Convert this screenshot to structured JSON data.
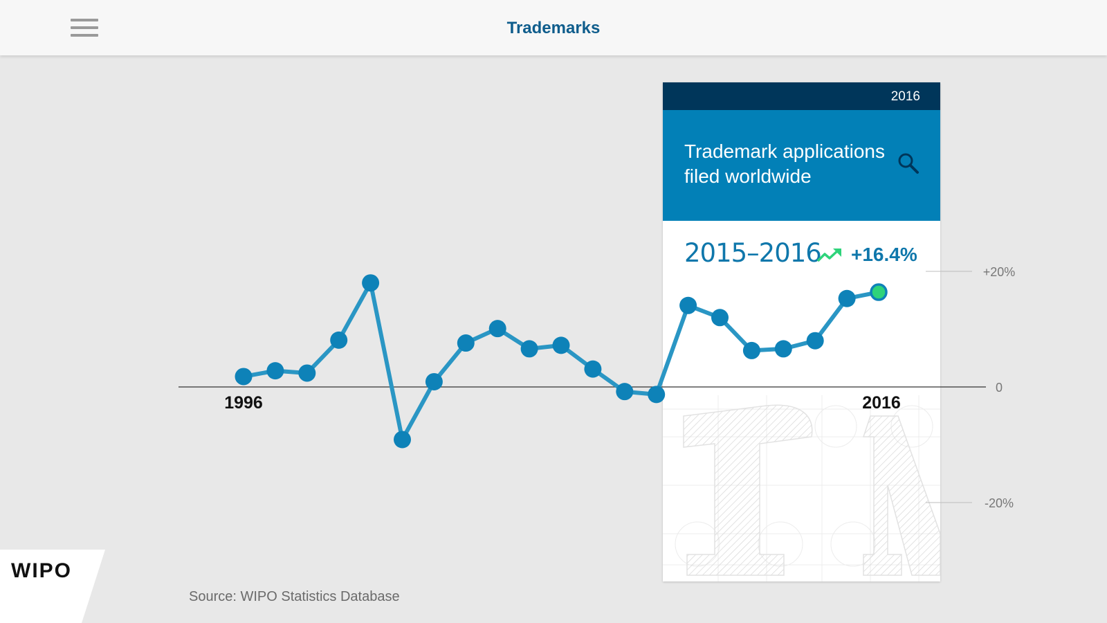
{
  "header": {
    "title": "Trademarks",
    "menu_icon": "hamburger-menu-icon"
  },
  "card": {
    "year": "2016",
    "title": "Trademark applications\nfiled worldwide",
    "period": "2015–2016",
    "change": "+16.4%",
    "icons": {
      "search": "search-icon",
      "trend": "trending-up-icon"
    }
  },
  "source": "Source: WIPO Statistics Database",
  "logo": "WIPO",
  "colors": {
    "accent": "#0280b7",
    "dark_bar": "#00365a",
    "line": "#2a96c4",
    "point": "#0e82b8",
    "highlight_point": "#2ed37a",
    "trend_up": "#2ed37a",
    "title_text": "#0f5d8c"
  },
  "chart_data": {
    "type": "line",
    "x": [
      1996,
      1997,
      1998,
      1999,
      2000,
      2001,
      2002,
      2003,
      2004,
      2005,
      2006,
      2007,
      2008,
      2009,
      2010,
      2011,
      2012,
      2013,
      2014,
      2015,
      2016
    ],
    "series": [
      {
        "values": [
          1.8,
          2.8,
          2.4,
          8.1,
          18.0,
          -9.1,
          0.9,
          7.6,
          10.1,
          6.6,
          7.2,
          3.1,
          -0.8,
          -1.3,
          14.1,
          12.0,
          6.3,
          6.6,
          8.0,
          15.3,
          16.4
        ]
      }
    ],
    "x_tick_labels": [
      "1996",
      "2016"
    ],
    "y_tick_labels": [
      "+20%",
      "0",
      "-20%"
    ],
    "y_ticks": [
      20,
      0,
      -20
    ],
    "ylim": [
      -20,
      20
    ],
    "unit": "%",
    "highlight_last": true,
    "grid": false
  }
}
